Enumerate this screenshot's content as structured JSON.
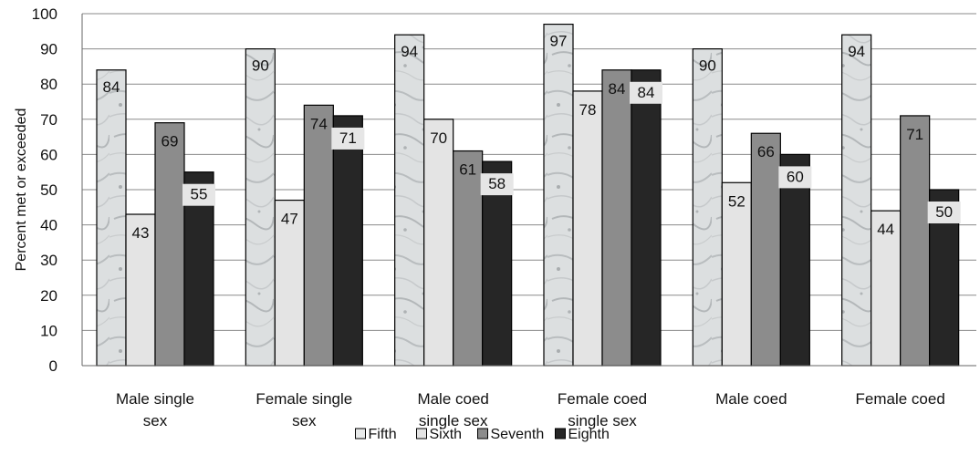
{
  "chart_data": {
    "type": "bar",
    "ylabel": "Percent met or exceeded",
    "ylim": [
      0,
      100
    ],
    "ytick_step": 10,
    "grid": true,
    "legend_position": "bottom",
    "categories": [
      [
        "Male single",
        "sex"
      ],
      [
        "Female single",
        "sex"
      ],
      [
        "Male coed",
        "single sex"
      ],
      [
        "Female coed",
        "single sex"
      ],
      [
        "Male coed"
      ],
      [
        "Female coed"
      ]
    ],
    "series": [
      {
        "name": "Fifth",
        "values": [
          84,
          90,
          94,
          97,
          90,
          94
        ],
        "color": "#d8dcdc",
        "pattern": "marble"
      },
      {
        "name": "Sixth",
        "values": [
          43,
          47,
          70,
          78,
          52,
          44
        ],
        "color": "#e4e4e4"
      },
      {
        "name": "Seventh",
        "values": [
          69,
          74,
          61,
          84,
          66,
          71
        ],
        "color": "#8c8c8c"
      },
      {
        "name": "Eighth",
        "values": [
          55,
          71,
          58,
          84,
          60,
          50
        ],
        "color": "#262626"
      }
    ]
  }
}
